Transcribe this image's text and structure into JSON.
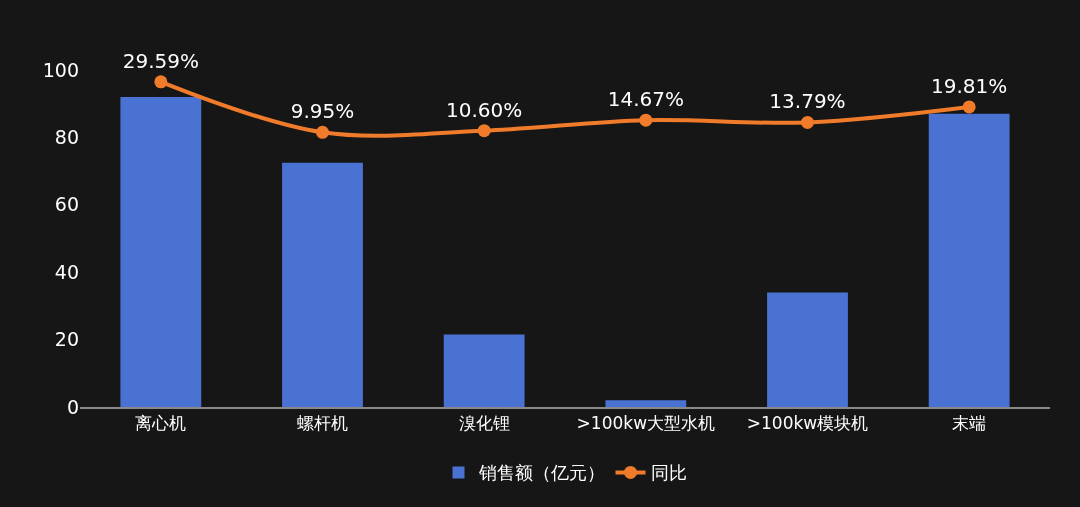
{
  "chart_data": {
    "type": "bar",
    "categories": [
      "离心机",
      "螺杆机",
      "溴化锂",
      ">100kw大型水机",
      ">100kw模块机",
      "末端"
    ],
    "series": [
      {
        "name": "销售额（亿元）",
        "color": "#4a72d2",
        "values": [
          92,
          72.5,
          21.5,
          2,
          34,
          87
        ]
      },
      {
        "name": "同比",
        "type": "line",
        "axis": "y2",
        "color": "#f07b2a",
        "marker": "circle",
        "values": [
          29.59,
          9.95,
          10.6,
          14.67,
          13.79,
          19.81
        ],
        "value_labels": [
          "29.59%",
          "9.95%",
          "10.60%",
          "14.67%",
          "13.79%",
          "19.81%"
        ]
      }
    ],
    "ylim": [
      0,
      100
    ],
    "yticks": [
      0,
      20,
      40,
      60,
      80,
      100
    ],
    "grid": false,
    "legend": "bottom"
  }
}
